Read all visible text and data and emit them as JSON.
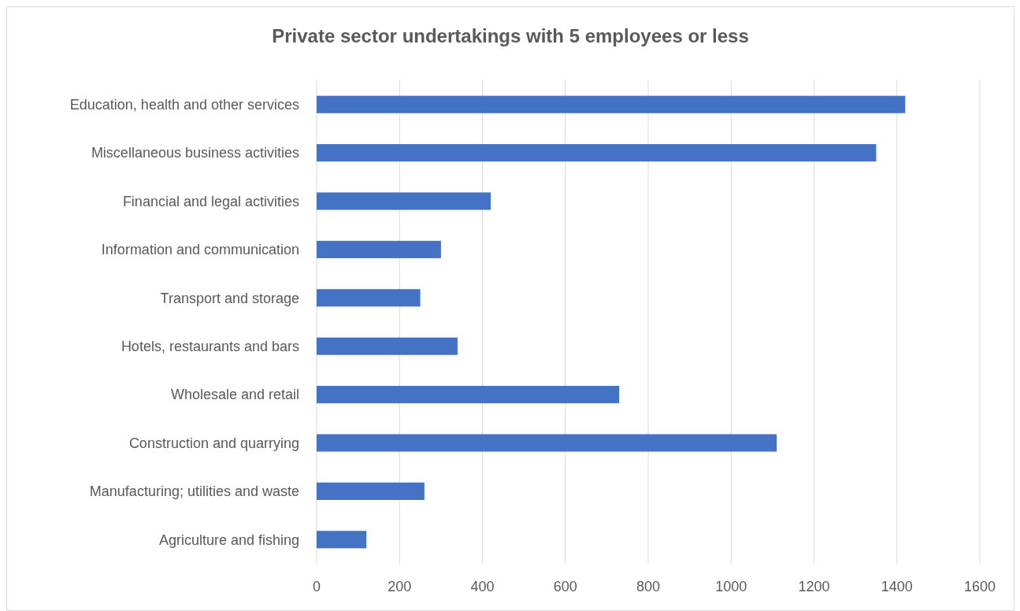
{
  "chart_data": {
    "type": "bar",
    "orientation": "horizontal",
    "title": "Private sector undertakings with 5 employees or less",
    "categories": [
      "Education, health and other services",
      "Miscellaneous business activities",
      "Financial and legal activities",
      "Information and communication",
      "Transport and storage",
      "Hotels, restaurants and bars",
      "Wholesale and retail",
      "Construction and quarrying",
      "Manufacturing; utilities and waste",
      "Agriculture and fishing"
    ],
    "values": [
      1420,
      1350,
      420,
      300,
      250,
      340,
      730,
      1110,
      260,
      120
    ],
    "color": "#4472c4",
    "xlim": [
      0,
      1600
    ],
    "xticks": [
      0,
      200,
      400,
      600,
      800,
      1000,
      1200,
      1400,
      1600
    ],
    "grid": "x"
  }
}
